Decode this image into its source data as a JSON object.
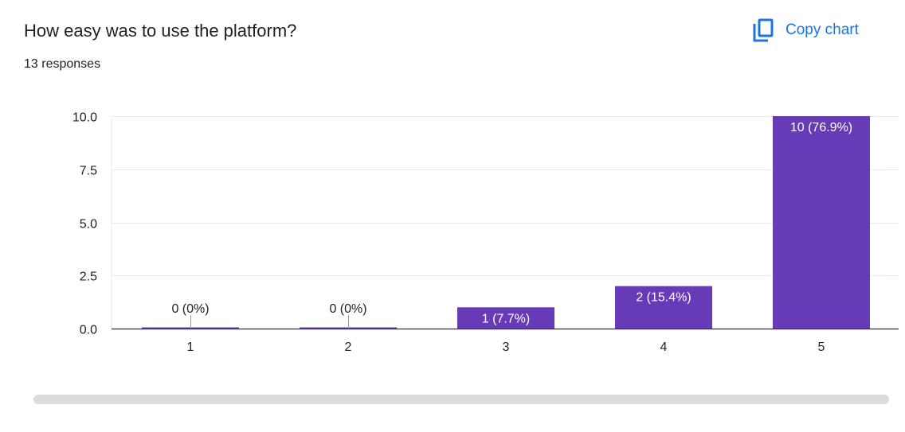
{
  "header": {
    "title": "How easy was to use the platform?",
    "responses": "13 responses",
    "copy_label": "Copy chart",
    "copy_icon": "copy-icon"
  },
  "colors": {
    "bar": "#673ab7",
    "accent": "#1a73e8",
    "grid": "#e8eaed",
    "axis": "#333333",
    "scrollbar": "#dadce0"
  },
  "chart_data": {
    "type": "bar",
    "categories": [
      "1",
      "2",
      "3",
      "4",
      "5"
    ],
    "values": [
      0,
      0,
      1,
      2,
      10
    ],
    "data_labels": [
      "0 (0%)",
      "0 (0%)",
      "1 (7.7%)",
      "2 (15.4%)",
      "10 (76.9%)"
    ],
    "ylim": [
      0,
      10
    ],
    "yticks": [
      0,
      2.5,
      5,
      7.5,
      10
    ],
    "ytick_labels": [
      "0.0",
      "2.5",
      "5.0",
      "7.5",
      "10.0"
    ],
    "grid": true
  }
}
